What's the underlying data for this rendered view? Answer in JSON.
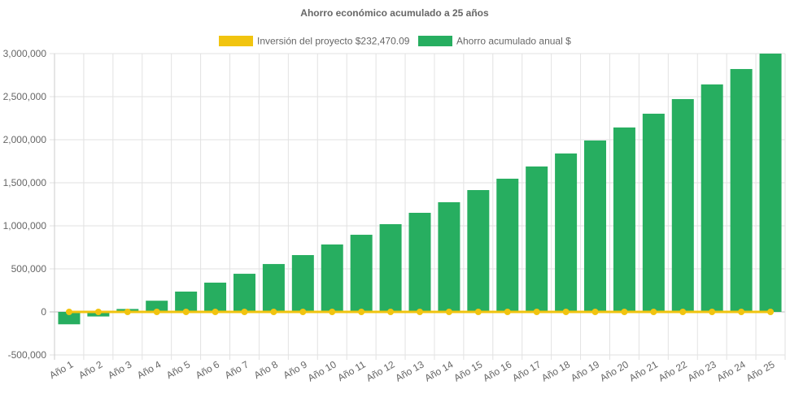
{
  "chart_data": {
    "type": "bar",
    "title": "Ahorro económico acumulado a 25 años",
    "xlabel": "",
    "ylabel": "",
    "ylim": [
      -500000,
      3000000
    ],
    "yticks": [
      "-500,000",
      "0",
      "500,000",
      "1,000,000",
      "1,500,000",
      "2,000,000",
      "2,500,000",
      "3,000,000"
    ],
    "ytick_values": [
      -500000,
      0,
      500000,
      1000000,
      1500000,
      2000000,
      2500000,
      3000000
    ],
    "grid": true,
    "legend_position": "top",
    "categories": [
      "Año 1",
      "Año 2",
      "Año 3",
      "Año 4",
      "Año 5",
      "Año 6",
      "Año 7",
      "Año 8",
      "Año 9",
      "Año 10",
      "Año 11",
      "Año 12",
      "Año 13",
      "Año 14",
      "Año 15",
      "Año 16",
      "Año 17",
      "Año 18",
      "Año 19",
      "Año 20",
      "Año 21",
      "Año 22",
      "Año 23",
      "Año 24",
      "Año 25"
    ],
    "series": [
      {
        "name": "Inversión del proyecto $232,470.09",
        "type": "line",
        "color": "#f1c40f",
        "values": [
          0,
          0,
          0,
          0,
          0,
          0,
          0,
          0,
          0,
          0,
          0,
          0,
          0,
          0,
          0,
          0,
          0,
          0,
          0,
          0,
          0,
          0,
          0,
          0,
          0
        ]
      },
      {
        "name": "Ahorro acumulado anual $",
        "type": "bar",
        "color": "#27ae60",
        "values": [
          -144000,
          -53000,
          34000,
          130000,
          236000,
          340000,
          443000,
          556000,
          660000,
          783000,
          896000,
          1019000,
          1151000,
          1274000,
          1415000,
          1547000,
          1689000,
          1840000,
          1991000,
          2142000,
          2302000,
          2472000,
          2642000,
          2821000,
          3000000
        ]
      }
    ]
  }
}
